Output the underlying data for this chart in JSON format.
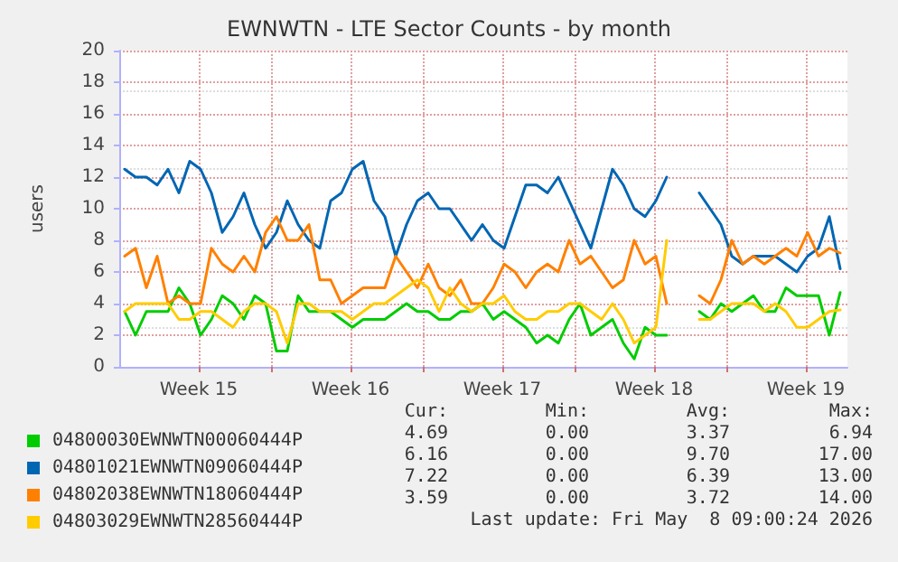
{
  "chart_data": {
    "type": "line",
    "title": "EWNWTN - LTE Sector Counts - by month",
    "ylabel": "users",
    "x": [
      "2026-04-06T06:00",
      "2026-04-06T18:00",
      "2026-04-07T06:00",
      "2026-04-07T18:00",
      "2026-04-08T06:00",
      "2026-04-08T18:00",
      "2026-04-09T06:00",
      "2026-04-09T18:00",
      "2026-04-10T06:00",
      "2026-04-10T18:00",
      "2026-04-11T06:00",
      "2026-04-11T18:00",
      "2026-04-12T06:00",
      "2026-04-12T18:00",
      "2026-04-13T06:00",
      "2026-04-13T18:00",
      "2026-04-14T06:00",
      "2026-04-14T18:00",
      "2026-04-15T06:00",
      "2026-04-15T18:00",
      "2026-04-16T06:00",
      "2026-04-16T18:00",
      "2026-04-17T06:00",
      "2026-04-17T18:00",
      "2026-04-18T06:00",
      "2026-04-18T18:00",
      "2026-04-19T06:00",
      "2026-04-19T18:00",
      "2026-04-20T06:00",
      "2026-04-20T18:00",
      "2026-04-21T06:00",
      "2026-04-21T18:00",
      "2026-04-22T06:00",
      "2026-04-22T18:00",
      "2026-04-23T06:00",
      "2026-04-23T18:00",
      "2026-04-24T06:00",
      "2026-04-24T18:00",
      "2026-04-25T06:00",
      "2026-04-25T18:00",
      "2026-04-26T06:00",
      "2026-04-26T18:00",
      "2026-04-27T06:00",
      "2026-04-27T18:00",
      "2026-04-28T06:00",
      "2026-04-28T18:00",
      "2026-04-29T06:00",
      "2026-04-29T18:00",
      "2026-04-30T06:00",
      "2026-04-30T18:00",
      "2026-05-01T06:00",
      "2026-05-01T18:00",
      "2026-05-02T06:00",
      "2026-05-02T18:00",
      "2026-05-03T06:00",
      "2026-05-03T18:00",
      "2026-05-04T06:00",
      "2026-05-04T18:00",
      "2026-05-05T06:00",
      "2026-05-05T18:00",
      "2026-05-06T06:00",
      "2026-05-06T18:00",
      "2026-05-07T06:00",
      "2026-05-07T18:00",
      "2026-05-08T06:00",
      "2026-05-08T18:00",
      "2026-05-09T06:00"
    ],
    "series": [
      {
        "name": "04800030EWNWTN00060444P",
        "color": "#00cc00",
        "values": [
          3.5,
          2,
          3.5,
          3.5,
          3.5,
          5,
          4,
          2,
          3,
          4.5,
          4,
          3,
          4.5,
          4,
          1,
          1,
          4.5,
          3.5,
          3.5,
          3.5,
          3,
          2.5,
          3,
          3,
          3,
          3.5,
          4,
          3.5,
          3.5,
          3,
          3,
          3.5,
          3.5,
          4,
          3,
          3.5,
          3,
          2.5,
          1.5,
          2,
          1.5,
          3,
          4,
          2,
          2.5,
          3,
          1.5,
          0.5,
          2.5,
          2,
          2,
          null,
          null,
          3.5,
          3,
          4,
          3.5,
          4,
          4.5,
          3.5,
          3.5,
          5,
          4.5,
          4.5,
          4.5,
          2,
          4.7
        ]
      },
      {
        "name": "04801021EWNWTN09060444P",
        "color": "#0066b3",
        "values": [
          12.5,
          12,
          12,
          11.5,
          12.5,
          11,
          13,
          12.5,
          11,
          8.5,
          9.5,
          11,
          9,
          7.5,
          8.5,
          10.5,
          9,
          8,
          7.5,
          10.5,
          11,
          12.5,
          13,
          10.5,
          9.5,
          7,
          9,
          10.5,
          11,
          10,
          10,
          9,
          8,
          9,
          8,
          7.5,
          9.5,
          11.5,
          11.5,
          11,
          12,
          10.5,
          9,
          7.5,
          10,
          12.5,
          11.5,
          10,
          9.5,
          10.5,
          12,
          null,
          null,
          11,
          10,
          9,
          7,
          6.5,
          7,
          7,
          7,
          6.5,
          6,
          7,
          7.5,
          9.5,
          6.2
        ]
      },
      {
        "name": "04802038EWNWTN18060444P",
        "color": "#ff8000",
        "values": [
          7,
          7.5,
          5,
          7,
          4,
          4.5,
          4,
          4,
          7.5,
          6.5,
          6,
          7,
          6,
          8.5,
          9.5,
          8,
          8,
          9,
          5.5,
          5.5,
          4,
          4.5,
          5,
          5,
          5,
          7,
          6,
          5,
          6.5,
          5,
          4.5,
          5.5,
          4,
          4,
          5,
          6.5,
          6,
          5,
          6,
          6.5,
          6,
          8,
          6.5,
          7,
          6,
          5,
          5.5,
          8,
          6.5,
          7,
          4,
          null,
          null,
          4.5,
          4,
          5.5,
          8,
          6.5,
          7,
          6.5,
          7,
          7.5,
          7,
          8.5,
          7,
          7.5,
          7.2
        ]
      },
      {
        "name": "04803029EWNWTN28560444P",
        "color": "#ffcc00",
        "values": [
          3.5,
          4,
          4,
          4,
          4,
          3,
          3,
          3.5,
          3.5,
          3,
          2.5,
          3.5,
          4,
          4,
          3.5,
          1.5,
          4,
          4,
          3.5,
          3.5,
          3.5,
          3,
          3.5,
          4,
          4,
          4.5,
          5,
          5.5,
          5,
          3.5,
          5,
          4,
          3.5,
          4,
          4,
          4.5,
          3.5,
          3,
          3,
          3.5,
          3.5,
          4,
          4,
          3.5,
          3,
          4,
          3,
          1.5,
          2,
          2.5,
          8,
          null,
          null,
          3,
          3,
          3.5,
          4,
          4,
          4,
          3.5,
          4,
          3.5,
          2.5,
          2.5,
          3,
          3.5,
          3.6
        ]
      }
    ],
    "xlim": [
      "2026-04-06T00:00",
      "2026-05-09T14:00"
    ],
    "xticks": [
      {
        "value": "2026-04-09T16:00",
        "label": "Week 15"
      },
      {
        "value": "2026-04-13T00:00",
        "label": null
      },
      {
        "value": "2026-04-16T16:00",
        "label": "Week 16"
      },
      {
        "value": "2026-04-20T00:00",
        "label": null
      },
      {
        "value": "2026-04-23T16:00",
        "label": "Week 17"
      },
      {
        "value": "2026-04-27T00:00",
        "label": null
      },
      {
        "value": "2026-04-30T16:00",
        "label": "Week 18"
      },
      {
        "value": "2026-05-04T00:00",
        "label": null
      },
      {
        "value": "2026-05-07T16:00",
        "label": "Week 19"
      }
    ],
    "ylim": [
      0,
      20
    ],
    "yticks": [
      0,
      2,
      4,
      6,
      8,
      10,
      12,
      14,
      16,
      18,
      20
    ],
    "grid": true,
    "legend": "bottom left",
    "marker": "none",
    "line_style": "solid",
    "annotations": [
      "Cur:",
      "Min:",
      "Avg:",
      "Max:",
      "4.69",
      "0.00",
      "3.37",
      "6.94",
      "6.16",
      "0.00",
      "9.70",
      "17.00",
      "7.22",
      "0.00",
      "6.39",
      "13.00",
      "3.59",
      "0.00",
      "3.72",
      "14.00",
      "Last update: Fri May  8 09:00:24 2026"
    ]
  }
}
